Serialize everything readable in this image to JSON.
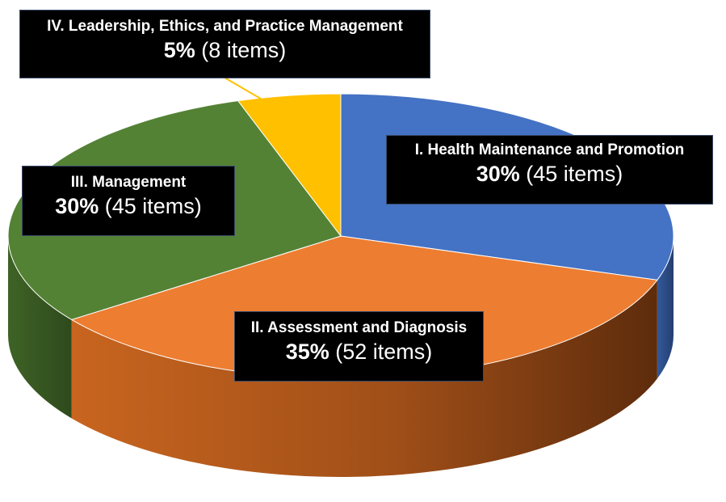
{
  "chart_data": {
    "type": "pie",
    "title": "",
    "slices": [
      {
        "name": "I. Health Maintenance and Promotion",
        "percent_label": "30%",
        "items_label": "(45 items)",
        "value": 30,
        "items": 45,
        "color": "#4472C4"
      },
      {
        "name": "II. Assessment and Diagnosis",
        "percent_label": "35%",
        "items_label": "(52 items)",
        "value": 35,
        "items": 52,
        "color": "#ED7D31"
      },
      {
        "name": "III. Management",
        "percent_label": "30%",
        "items_label": "(45 items)",
        "value": 30,
        "items": 45,
        "color": "#548235"
      },
      {
        "name": "IV. Leadership, Ethics, and Practice Management",
        "percent_label": "5%",
        "items_label": "(8 items)",
        "value": 5,
        "items": 8,
        "color": "#FFC000"
      }
    ]
  }
}
